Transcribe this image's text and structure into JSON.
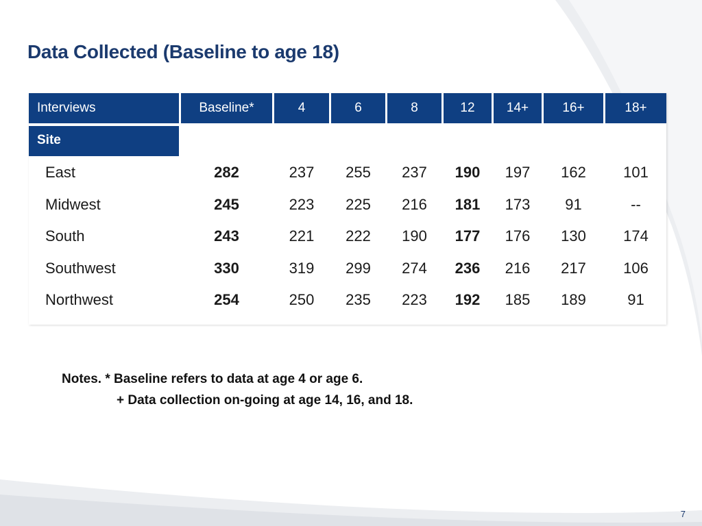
{
  "title": "Data Collected (Baseline to age 18)",
  "table": {
    "headers": [
      "Interviews",
      "Baseline*",
      "4",
      "6",
      "8",
      "12",
      "14+",
      "16+",
      "18+"
    ],
    "site_label": "Site",
    "rows": [
      {
        "name": "East",
        "values": [
          "282",
          "237",
          "255",
          "237",
          "190",
          "197",
          "162",
          "101"
        ]
      },
      {
        "name": "Midwest",
        "values": [
          "245",
          "223",
          "225",
          "216",
          "181",
          "173",
          "91",
          "--"
        ]
      },
      {
        "name": "South",
        "values": [
          "243",
          "221",
          "222",
          "190",
          "177",
          "176",
          "130",
          "174"
        ]
      },
      {
        "name": "Southwest",
        "values": [
          "330",
          "319",
          "299",
          "274",
          "236",
          "216",
          "217",
          "106"
        ]
      },
      {
        "name": "Northwest",
        "values": [
          "254",
          "250",
          "235",
          "223",
          "192",
          "185",
          "189",
          "91"
        ]
      }
    ]
  },
  "notes": {
    "line1": "Notes.  * Baseline refers to data at age 4 or age 6.",
    "line2": "+ Data collection on-going at age 14, 16, and 18."
  },
  "page_number": "7",
  "colors": {
    "header_bg": "#0f3f82",
    "title": "#1b3a6e"
  }
}
